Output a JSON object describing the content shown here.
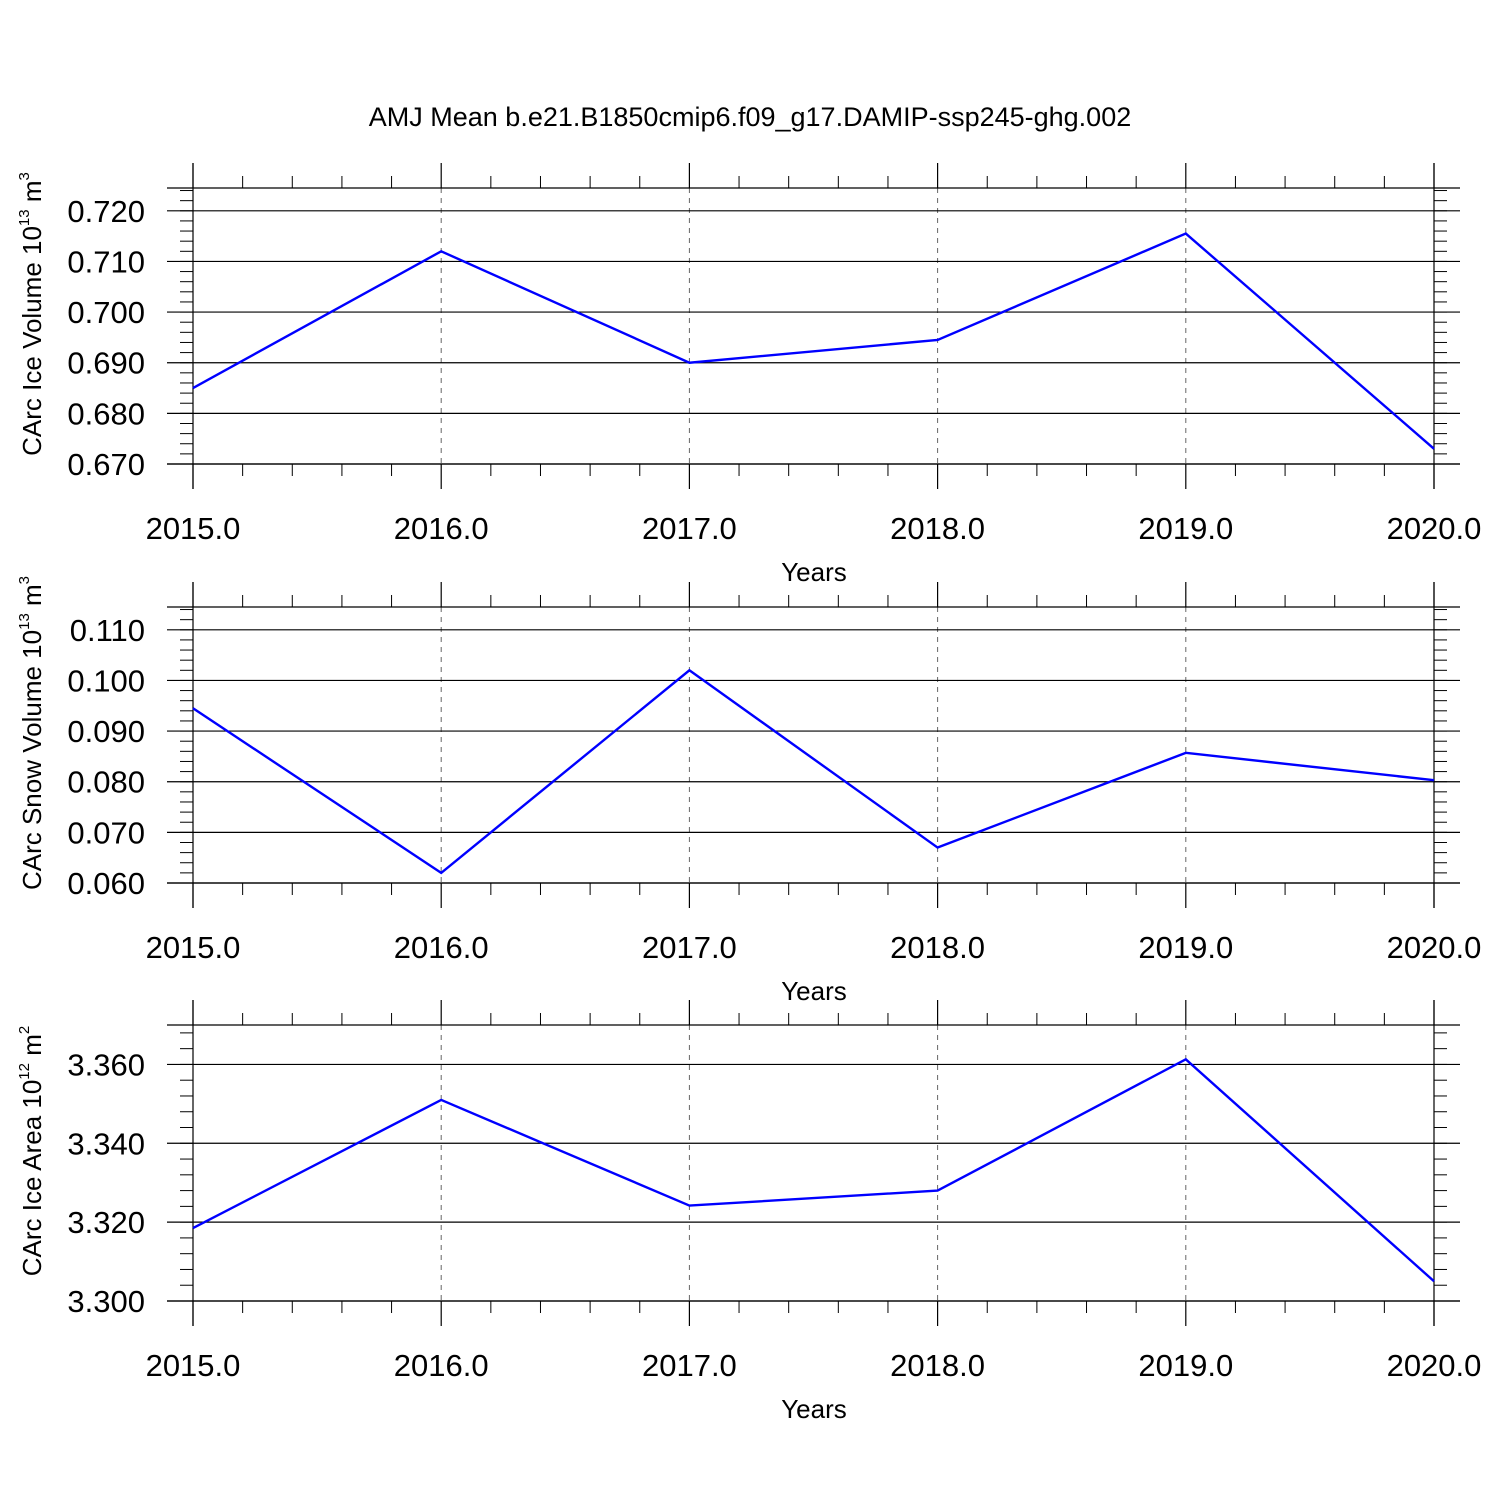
{
  "colors": {
    "line": "#0000ff",
    "axis": "#000000",
    "grid": "#666666",
    "background": "#ffffff"
  },
  "chart_data": [
    {
      "type": "line",
      "title": "AMJ Mean b.e21.B1850cmip6.f09_g17.DAMIP-ssp245-ghg.002",
      "xlabel": "Years",
      "ylabel": {
        "text": "CArc Ice Volume 10",
        "exponent": "13",
        "unit": " m",
        "unit_exponent": "3"
      },
      "x": [
        2015,
        2016,
        2017,
        2018,
        2019,
        2020
      ],
      "xticks": [
        "2015.0",
        "2016.0",
        "2017.0",
        "2018.0",
        "2019.0",
        "2020.0"
      ],
      "yticks": [
        "0.670",
        "0.680",
        "0.690",
        "0.700",
        "0.710",
        "0.720"
      ],
      "ytick_values": [
        0.67,
        0.68,
        0.69,
        0.7,
        0.71,
        0.72
      ],
      "ylim": [
        0.67,
        0.7245
      ],
      "xlim": [
        2015,
        2020
      ],
      "grid": "vertical dashed at major x ticks",
      "series": [
        {
          "values": [
            0.685,
            0.712,
            0.69,
            0.6945,
            0.7155,
            0.673
          ]
        }
      ]
    },
    {
      "type": "line",
      "title": "",
      "xlabel": "Years",
      "ylabel": {
        "text": "CArc Snow Volume 10",
        "exponent": "13",
        "unit": " m",
        "unit_exponent": "3"
      },
      "x": [
        2015,
        2016,
        2017,
        2018,
        2019,
        2020
      ],
      "xticks": [
        "2015.0",
        "2016.0",
        "2017.0",
        "2018.0",
        "2019.0",
        "2020.0"
      ],
      "yticks": [
        "0.060",
        "0.070",
        "0.080",
        "0.090",
        "0.100",
        "0.110"
      ],
      "ytick_values": [
        0.06,
        0.07,
        0.08,
        0.09,
        0.1,
        0.11
      ],
      "ylim": [
        0.06,
        0.1145
      ],
      "xlim": [
        2015,
        2020
      ],
      "grid": "vertical dashed at major x ticks",
      "series": [
        {
          "values": [
            0.0945,
            0.062,
            0.102,
            0.067,
            0.0857,
            0.0803
          ]
        }
      ]
    },
    {
      "type": "line",
      "title": "",
      "xlabel": "Years",
      "ylabel": {
        "text": "CArc Ice Area 10",
        "exponent": "12",
        "unit": " m",
        "unit_exponent": "2"
      },
      "x": [
        2015,
        2016,
        2017,
        2018,
        2019,
        2020
      ],
      "xticks": [
        "2015.0",
        "2016.0",
        "2017.0",
        "2018.0",
        "2019.0",
        "2020.0"
      ],
      "yticks": [
        "3.300",
        "3.320",
        "3.340",
        "3.360"
      ],
      "ytick_values": [
        3.3,
        3.32,
        3.34,
        3.36
      ],
      "ylim": [
        3.3,
        3.37
      ],
      "xlim": [
        2015,
        2020
      ],
      "grid": "vertical dashed at major x ticks",
      "series": [
        {
          "values": [
            3.3185,
            3.351,
            3.3242,
            3.328,
            3.3613,
            3.305
          ]
        }
      ]
    }
  ]
}
